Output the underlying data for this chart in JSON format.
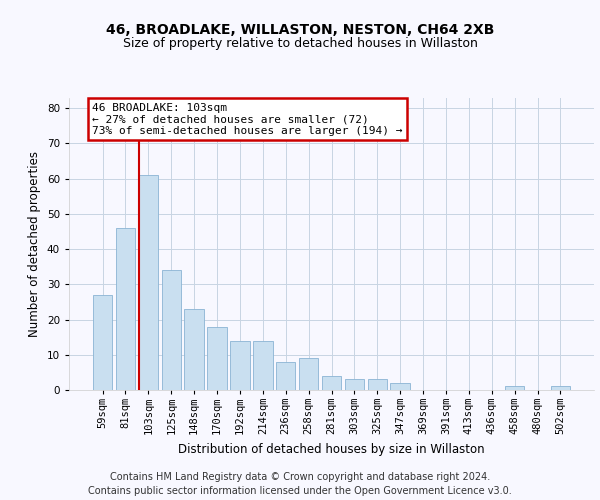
{
  "title_line1": "46, BROADLAKE, WILLASTON, NESTON, CH64 2XB",
  "title_line2": "Size of property relative to detached houses in Willaston",
  "xlabel": "Distribution of detached houses by size in Willaston",
  "ylabel": "Number of detached properties",
  "footer_line1": "Contains HM Land Registry data © Crown copyright and database right 2024.",
  "footer_line2": "Contains public sector information licensed under the Open Government Licence v3.0.",
  "categories": [
    "59sqm",
    "81sqm",
    "103sqm",
    "125sqm",
    "148sqm",
    "170sqm",
    "192sqm",
    "214sqm",
    "236sqm",
    "258sqm",
    "281sqm",
    "303sqm",
    "325sqm",
    "347sqm",
    "369sqm",
    "391sqm",
    "413sqm",
    "436sqm",
    "458sqm",
    "480sqm",
    "502sqm"
  ],
  "values": [
    27,
    46,
    61,
    34,
    23,
    18,
    14,
    14,
    8,
    9,
    4,
    3,
    3,
    2,
    0,
    0,
    0,
    0,
    1,
    0,
    1
  ],
  "bar_color": "#c9dff0",
  "bar_edge_color": "#8ab4d4",
  "highlight_index": 2,
  "highlight_line_color": "#cc0000",
  "annotation_line1": "46 BROADLAKE: 103sqm",
  "annotation_line2": "← 27% of detached houses are smaller (72)",
  "annotation_line3": "73% of semi-detached houses are larger (194) →",
  "annotation_box_color": "#ffffff",
  "annotation_box_edge_color": "#cc0000",
  "ylim": [
    0,
    83
  ],
  "yticks": [
    0,
    10,
    20,
    30,
    40,
    50,
    60,
    70,
    80
  ],
  "grid_color": "#c8d4e3",
  "background_color": "#f8f8ff",
  "title_fontsize": 10,
  "subtitle_fontsize": 9,
  "axis_label_fontsize": 8.5,
  "tick_fontsize": 7.5,
  "annotation_fontsize": 8,
  "footer_fontsize": 7
}
